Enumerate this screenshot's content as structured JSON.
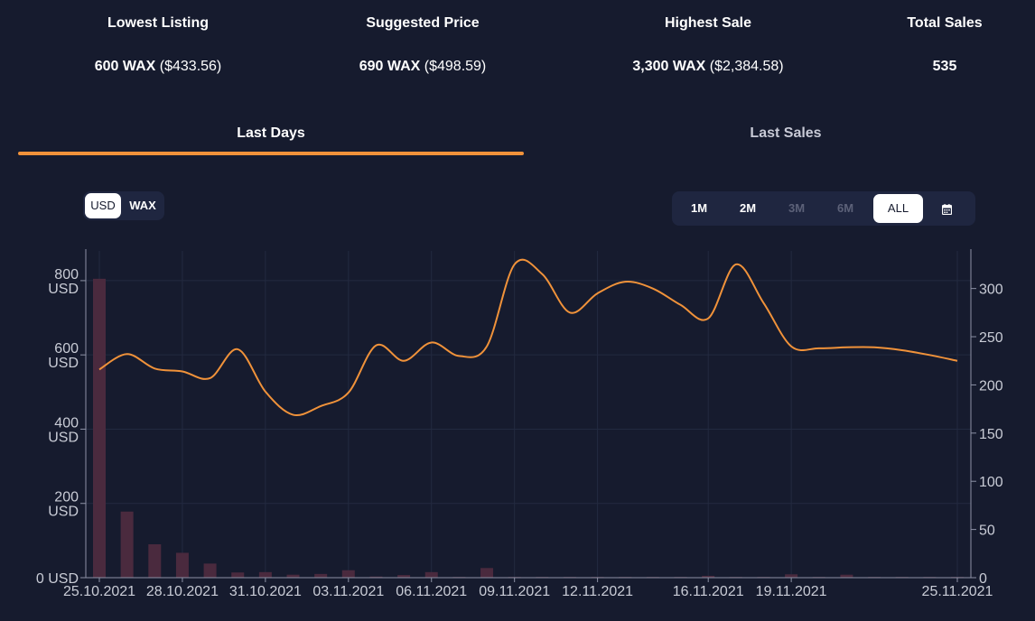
{
  "stats": [
    {
      "label": "Lowest Listing",
      "value_bold": "600 WAX",
      "value_rest": "($433.56)"
    },
    {
      "label": "Suggested Price",
      "value_bold": "690 WAX",
      "value_rest": "($498.59)"
    },
    {
      "label": "Highest Sale",
      "value_bold": "3,300 WAX",
      "value_rest": "($2,384.58)"
    },
    {
      "label": "Total Sales",
      "value_bold": "535",
      "value_rest": ""
    }
  ],
  "tabs": [
    {
      "label": "Last Days",
      "active": true
    },
    {
      "label": "Last Sales",
      "active": false
    }
  ],
  "currency": {
    "options": [
      "USD",
      "WAX"
    ],
    "selected": "USD"
  },
  "ranges": {
    "options": [
      {
        "label": "1M",
        "state": "enabled"
      },
      {
        "label": "2M",
        "state": "enabled"
      },
      {
        "label": "3M",
        "state": "disabled"
      },
      {
        "label": "6M",
        "state": "disabled"
      },
      {
        "label": "ALL",
        "state": "selected"
      }
    ],
    "calendar_icon": "calendar-icon"
  },
  "colors": {
    "line": "#f0923a",
    "bars": "#4a2a3e",
    "grid": "#232a40",
    "accent": "#f0923a"
  },
  "chart_data": {
    "type": "bar+line",
    "x_start": "2021-10-25",
    "x_end": "2021-11-25",
    "x_tick_labels": [
      "25.10.2021",
      "28.10.2021",
      "31.10.2021",
      "03.11.2021",
      "06.11.2021",
      "09.11.2021",
      "12.11.2021",
      "16.11.2021",
      "19.11.2021",
      "25.11.2021"
    ],
    "x_tick_dates": [
      "2021-10-25",
      "2021-10-28",
      "2021-10-31",
      "2021-11-03",
      "2021-11-06",
      "2021-11-09",
      "2021-11-12",
      "2021-11-16",
      "2021-11-19",
      "2021-11-25"
    ],
    "left_axis": {
      "ticks": [
        {
          "value": 0,
          "label": "0 USD"
        },
        {
          "value": 200,
          "label": "200 USD"
        },
        {
          "value": 400,
          "label": "400 USD"
        },
        {
          "value": 600,
          "label": "600 USD"
        },
        {
          "value": 800,
          "label": "800 USD"
        }
      ],
      "range": [
        0,
        880
      ]
    },
    "right_axis": {
      "ticks": [
        0,
        50,
        100,
        150,
        200,
        250,
        300
      ],
      "range": [
        0,
        339
      ]
    },
    "bars": {
      "axis": "left",
      "dates": [
        "2021-10-25",
        "2021-10-26",
        "2021-10-27",
        "2021-10-28",
        "2021-10-29",
        "2021-10-30",
        "2021-10-31",
        "2021-11-01",
        "2021-11-02",
        "2021-11-03",
        "2021-11-04",
        "2021-11-05",
        "2021-11-06",
        "2021-11-07",
        "2021-11-08",
        "2021-11-09",
        "2021-11-10",
        "2021-11-11",
        "2021-11-12",
        "2021-11-13",
        "2021-11-14",
        "2021-11-15",
        "2021-11-16",
        "2021-11-17",
        "2021-11-18",
        "2021-11-19",
        "2021-11-20",
        "2021-11-21",
        "2021-11-22",
        "2021-11-23",
        "2021-11-24",
        "2021-11-25"
      ],
      "values": [
        805,
        178,
        90,
        67,
        38,
        14,
        15,
        8,
        10,
        20,
        3,
        7,
        15,
        2,
        26,
        2,
        2,
        2,
        2,
        2,
        2,
        2,
        5,
        2,
        2,
        9,
        2,
        8,
        2,
        2,
        2,
        2
      ]
    },
    "series": [
      {
        "axis": "right",
        "type": "line",
        "dates": [
          "2021-10-25",
          "2021-10-26",
          "2021-10-27",
          "2021-10-28",
          "2021-10-29",
          "2021-10-30",
          "2021-10-31",
          "2021-11-01",
          "2021-11-02",
          "2021-11-03",
          "2021-11-04",
          "2021-11-05",
          "2021-11-06",
          "2021-11-07",
          "2021-11-08",
          "2021-11-09",
          "2021-11-10",
          "2021-11-11",
          "2021-11-12",
          "2021-11-13",
          "2021-11-14",
          "2021-11-15",
          "2021-11-16",
          "2021-11-17",
          "2021-11-18",
          "2021-11-19",
          "2021-11-20",
          "2021-11-21",
          "2021-11-22",
          "2021-11-23",
          "2021-11-24",
          "2021-11-25"
        ],
        "values": [
          216,
          232,
          217,
          214,
          207,
          237,
          193,
          169,
          178,
          192,
          241,
          225,
          244,
          230,
          240,
          325,
          315,
          275,
          295,
          307,
          300,
          283,
          269,
          325,
          285,
          240,
          238,
          239,
          239,
          236,
          231,
          225
        ]
      }
    ]
  }
}
